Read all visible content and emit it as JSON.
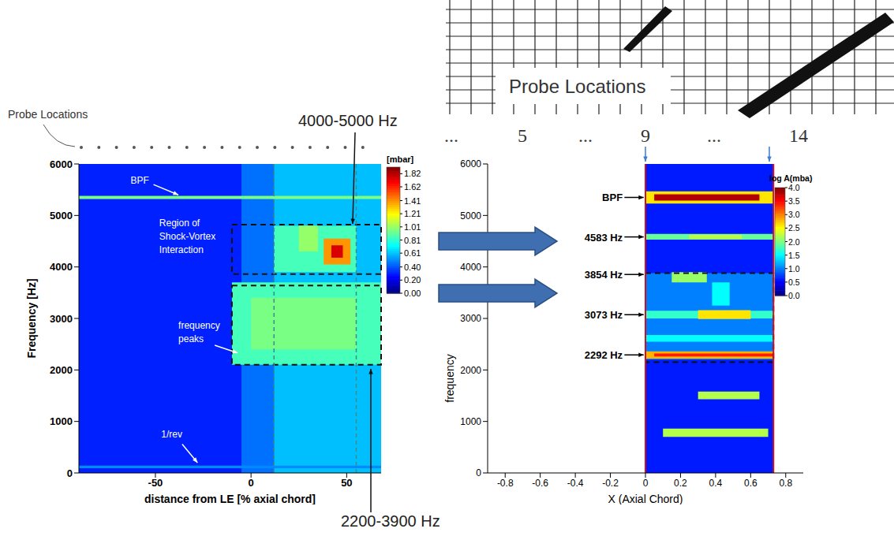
{
  "chart_data": [
    {
      "type": "heatmap",
      "x_label": "distance from LE [% axial chord]",
      "y_label": "Frequency [Hz]",
      "xlim": [
        -90,
        68
      ],
      "xticks": [
        -50,
        0,
        50
      ],
      "ylim": [
        0,
        6000
      ],
      "yticks": [
        0,
        1000,
        2000,
        3000,
        4000,
        5000,
        6000
      ],
      "colorbar": {
        "title": "[mbar]",
        "range": [
          0,
          1.92
        ],
        "ticks": [
          {
            "value": 0,
            "label": "0.00"
          },
          {
            "value": 0.2,
            "label": "0.20"
          },
          {
            "value": 0.4,
            "label": "0.40"
          },
          0.61,
          0.81,
          1.01,
          1.21,
          1.41,
          1.62,
          1.82
        ]
      },
      "cells": [
        {
          "x": [
            -90,
            68
          ],
          "y": [
            0,
            6000
          ],
          "value": 0.3
        },
        {
          "x": [
            -5,
            12
          ],
          "y": [
            0,
            6000
          ],
          "value": 0.45
        },
        {
          "x": [
            12,
            68
          ],
          "y": [
            0,
            6000
          ],
          "value": 0.6
        },
        {
          "x": [
            -10,
            68
          ],
          "y": [
            2100,
            3700
          ],
          "value": 0.85
        },
        {
          "x": [
            0,
            55
          ],
          "y": [
            2400,
            3400
          ],
          "value": 0.95
        },
        {
          "x": [
            12,
            55
          ],
          "y": [
            3900,
            4800
          ],
          "value": 0.85
        },
        {
          "x": [
            25,
            35
          ],
          "y": [
            4300,
            4800
          ],
          "value": 1.0
        },
        {
          "x": [
            38,
            52
          ],
          "y": [
            4050,
            4550
          ],
          "value": 1.4
        },
        {
          "x": [
            42,
            48
          ],
          "y": [
            4180,
            4420
          ],
          "value": 1.75
        },
        {
          "x": [
            -90,
            68
          ],
          "y": [
            5320,
            5380
          ],
          "value": 0.95
        },
        {
          "x": [
            -90,
            68
          ],
          "y": [
            90,
            140
          ],
          "value": 0.5
        }
      ],
      "reference_lines": {
        "x": [
          12,
          55
        ]
      },
      "boxes": [
        {
          "x": [
            -10,
            68
          ],
          "y": [
            3860,
            4820
          ]
        },
        {
          "x": [
            -10,
            68
          ],
          "y": [
            2100,
            3640
          ]
        }
      ],
      "annotations": [
        {
          "text": "BPF",
          "x": -63,
          "y": 5620,
          "arrow_from": [
            -51,
            5600
          ],
          "arrow_to": [
            -38,
            5400
          ]
        },
        {
          "text": "Region of Shock-Vortex Interaction",
          "x": -48,
          "y": 4790
        },
        {
          "text": "frequency peaks",
          "x": -38,
          "y": 2800,
          "arrow_from": [
            -19,
            2480
          ],
          "arrow_to": [
            -7,
            2330
          ]
        },
        {
          "text": "1/rev",
          "x": -47,
          "y": 690,
          "arrow_from": [
            -36,
            560
          ],
          "arrow_to": [
            -28,
            200
          ]
        }
      ]
    },
    {
      "type": "heatmap",
      "x_label": "X (Axial Chord)",
      "y_label": "frequency",
      "xlim": [
        -0.9,
        0.9
      ],
      "xticks": [
        -0.8,
        -0.6,
        -0.4,
        -0.2,
        0,
        0.2,
        0.4,
        0.6,
        0.8
      ],
      "ylim": [
        0,
        6000
      ],
      "yticks": [
        0,
        1000,
        2000,
        3000,
        4000,
        5000,
        6000
      ],
      "colorbar": {
        "title": "log A(mba)",
        "range": [
          0,
          4
        ],
        "ticks": [
          {
            "value": 0,
            "label": "0.0"
          },
          0.5,
          {
            "value": 1,
            "label": "1.0"
          },
          1.5,
          {
            "value": 2,
            "label": "2.0"
          },
          2.5,
          {
            "value": 3,
            "label": "3.0"
          },
          3.5,
          {
            "value": 4,
            "label": "4.0"
          }
        ]
      },
      "cells": [
        {
          "x": [
            0,
            0.73
          ],
          "y": [
            0,
            6000
          ],
          "value": 0.6
        },
        {
          "x": [
            0,
            0.73
          ],
          "y": [
            2200,
            3880
          ],
          "value": 1.0
        },
        {
          "x": [
            0,
            0.73
          ],
          "y": [
            5230,
            5470
          ],
          "value": 2.6
        },
        {
          "x": [
            0.05,
            0.65
          ],
          "y": [
            5290,
            5410
          ],
          "value": 3.8
        },
        {
          "x": [
            0,
            0.73
          ],
          "y": [
            4530,
            4640
          ],
          "value": 1.9
        },
        {
          "x": [
            0.25,
            0.55
          ],
          "y": [
            4540,
            4630
          ],
          "value": 2.2
        },
        {
          "x": [
            0.15,
            0.35
          ],
          "y": [
            3700,
            3900
          ],
          "value": 2.1
        },
        {
          "x": [
            0.38,
            0.48
          ],
          "y": [
            3250,
            3700
          ],
          "value": 1.5
        },
        {
          "x": [
            0,
            0.73
          ],
          "y": [
            3000,
            3150
          ],
          "value": 1.7
        },
        {
          "x": [
            0.3,
            0.6
          ],
          "y": [
            2990,
            3160
          ],
          "value": 2.6
        },
        {
          "x": [
            0,
            0.73
          ],
          "y": [
            2550,
            2680
          ],
          "value": 1.5
        },
        {
          "x": [
            0,
            0.73
          ],
          "y": [
            2220,
            2360
          ],
          "value": 2.8
        },
        {
          "x": [
            0.05,
            0.73
          ],
          "y": [
            2260,
            2320
          ],
          "value": 3.4
        },
        {
          "x": [
            0.3,
            0.65
          ],
          "y": [
            1430,
            1580
          ],
          "value": 2.2
        },
        {
          "x": [
            0.1,
            0.7
          ],
          "y": [
            700,
            860
          ],
          "value": 2.2
        }
      ],
      "boxes": [
        {
          "x": [
            0,
            0.73
          ],
          "y": [
            2150,
            3880
          ]
        }
      ],
      "annotations": [
        {
          "text": "BPF",
          "x": -0.13,
          "y": 5350,
          "arrow_from": [
            -0.12,
            5350
          ],
          "arrow_to": [
            -0.01,
            5350
          ]
        },
        {
          "text": "4583 Hz",
          "x": -0.13,
          "y": 4583,
          "arrow_from": [
            -0.12,
            4583
          ],
          "arrow_to": [
            -0.01,
            4583
          ]
        },
        {
          "text": "3854 Hz",
          "x": -0.13,
          "y": 3854,
          "arrow_from": [
            -0.12,
            3854
          ],
          "arrow_to": [
            -0.01,
            3854
          ]
        },
        {
          "text": "3073 Hz",
          "x": -0.13,
          "y": 3073,
          "arrow_from": [
            -0.12,
            3073
          ],
          "arrow_to": [
            -0.01,
            3073
          ]
        },
        {
          "text": "2292 Hz",
          "x": -0.13,
          "y": 2292,
          "arrow_from": [
            -0.12,
            2292
          ],
          "arrow_to": [
            -0.01,
            2292
          ]
        }
      ]
    }
  ],
  "figure": {
    "probe_label": "Probe Locations",
    "schematic": {
      "title": "Probe Locations",
      "labels": [
        "...",
        "5",
        "...",
        "9",
        "...",
        "14"
      ]
    },
    "callouts": [
      "4000-5000 Hz",
      "2200-3900 Hz"
    ]
  }
}
